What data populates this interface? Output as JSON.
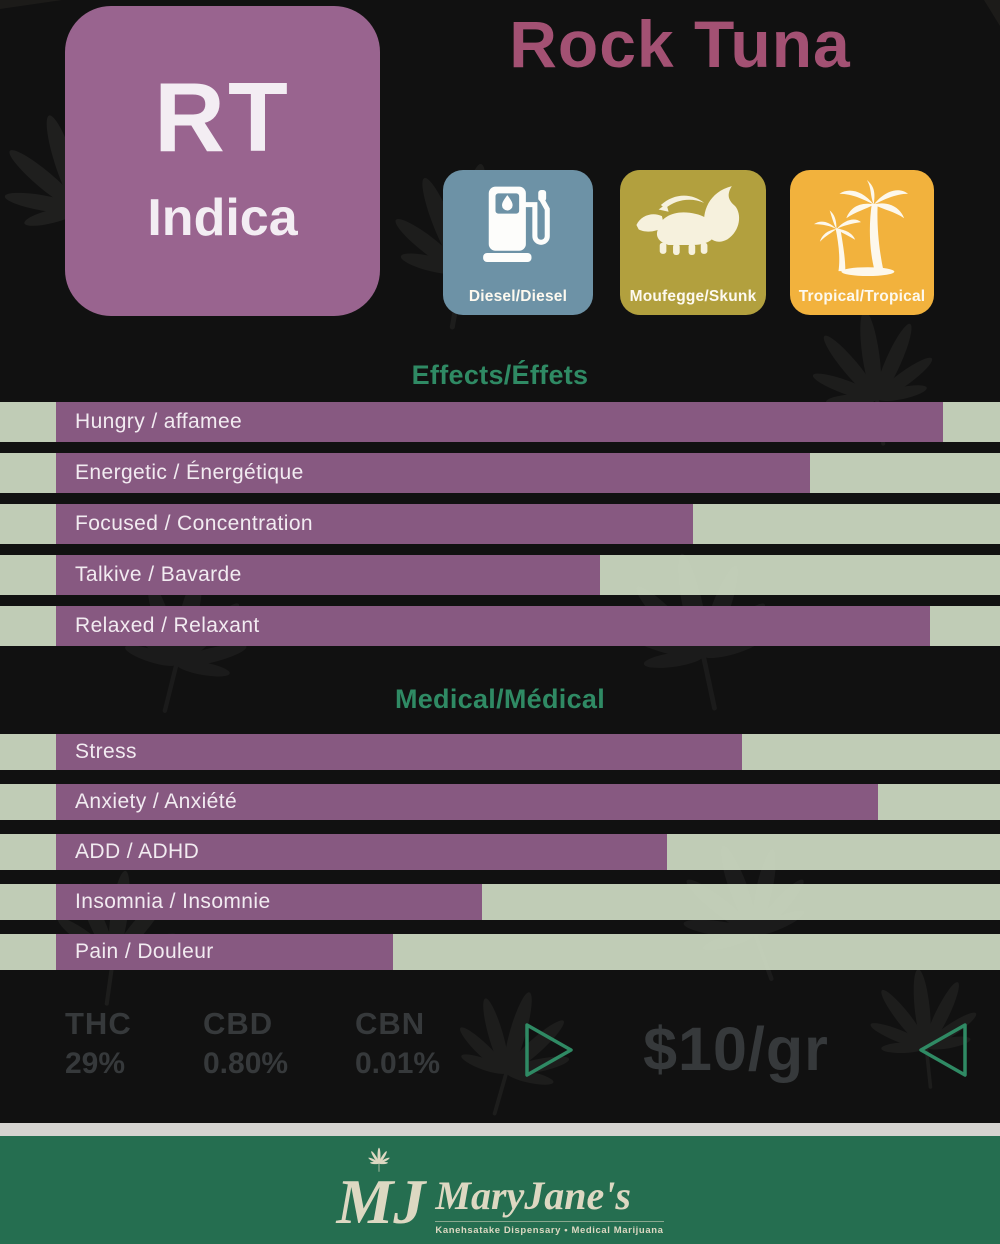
{
  "poster": {
    "strain_code": "RT",
    "strain_type": "Indica",
    "title": "Rock Tuna",
    "flavors": [
      {
        "icon": "gas-pump-icon",
        "label": "Diesel/Diesel",
        "color": "#6d92a6"
      },
      {
        "icon": "skunk-icon",
        "label": "Moufegge/Skunk",
        "color": "#b2a03e"
      },
      {
        "icon": "palm-trees-icon",
        "label": "Tropical/Tropical",
        "color": "#f2b23d"
      }
    ],
    "effects": {
      "heading": "Effects/Éffets",
      "rows": [
        {
          "label": "Hungry / affamee",
          "width_pct": 88.7
        },
        {
          "label": "Energetic / Énergétique",
          "width_pct": 75.4
        },
        {
          "label": "Focused / Concentration",
          "width_pct": 63.7
        },
        {
          "label": "Talkive / Bavarde",
          "width_pct": 54.4
        },
        {
          "label": "Relaxed / Relaxant",
          "width_pct": 87.4
        }
      ]
    },
    "medical": {
      "heading": "Medical/Médical",
      "rows": [
        {
          "label": "Stress",
          "width_pct": 68.6
        },
        {
          "label": "Anxiety / Anxiété",
          "width_pct": 82.2
        },
        {
          "label": "ADD / ADHD",
          "width_pct": 61.1
        },
        {
          "label": "Insomnia / Insomnie",
          "width_pct": 42.6
        },
        {
          "label": "Pain / Douleur",
          "width_pct": 33.7
        }
      ]
    },
    "stats": [
      {
        "label": "THC",
        "value": "29%"
      },
      {
        "label": "CBD",
        "value": "0.80%"
      },
      {
        "label": "CBN",
        "value": "0.01%"
      }
    ],
    "price": "$10/gr",
    "footer": {
      "monogram": "MJ",
      "brand": "MaryJane's",
      "tagline": "Kanehsatake Dispensary • Medical Marijuana"
    }
  },
  "colors": {
    "bar_purple": "#875981",
    "tile_purple": "#99648f",
    "title_berry": "#a35173",
    "heading_green": "#2f8a64",
    "track_green": "#cddac3",
    "footer_green": "#256e50",
    "diesel_blue": "#6d92a6",
    "skunk_olive": "#b2a03e",
    "tropical_amber": "#f2b23d",
    "stat_charcoal": "#36393b"
  },
  "chart_data": [
    {
      "type": "bar",
      "orientation": "horizontal",
      "title": "Effects/Éffets",
      "categories": [
        "Hungry / affamee",
        "Energetic / Énergétique",
        "Focused / Concentration",
        "Talkive / Bavarde",
        "Relaxed / Relaxant"
      ],
      "values": [
        94,
        81,
        69,
        60,
        93
      ],
      "xlabel": "",
      "ylabel": "",
      "xlim": [
        0,
        100
      ],
      "grid": false,
      "legend": "none",
      "note": "values estimated as percent of full track length"
    },
    {
      "type": "bar",
      "orientation": "horizontal",
      "title": "Medical/Médical",
      "categories": [
        "Stress",
        "Anxiety / Anxiété",
        "ADD / ADHD",
        "Insomnia / Insomnie",
        "Pain / Douleur"
      ],
      "values": [
        74,
        88,
        67,
        48,
        39
      ],
      "xlabel": "",
      "ylabel": "",
      "xlim": [
        0,
        100
      ],
      "grid": false,
      "legend": "none",
      "note": "values estimated as percent of full track length"
    }
  ]
}
